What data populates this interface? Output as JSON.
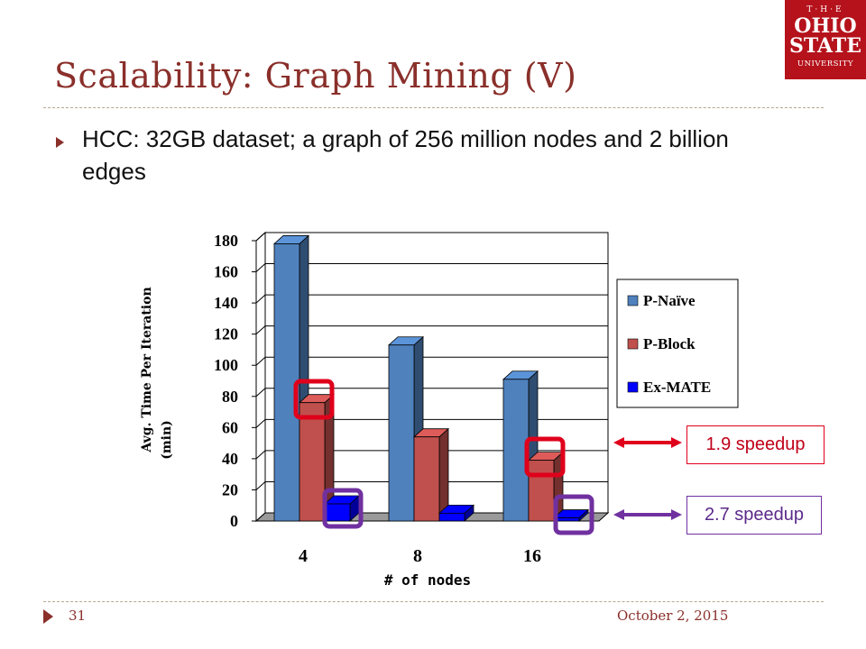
{
  "slide": {
    "title": "Scalability: Graph Mining (V)",
    "bullet": "HCC: 32GB dataset; a graph of 256 million nodes and 2 billion edges",
    "page_number": "31",
    "date": "October 2, 2015"
  },
  "logo": {
    "line1": "T·H·E",
    "line2": "OHIO",
    "line3": "STATE",
    "line4": "UNIVERSITY"
  },
  "callouts": {
    "speedup_red": "1.9 speedup",
    "speedup_purple": "2.7 speedup"
  },
  "colors": {
    "title": "#8a2f2a",
    "red_highlight": "#e0001b",
    "purple_highlight": "#7030a0"
  },
  "chart_data": {
    "type": "bar",
    "categories": [
      "4",
      "8",
      "16"
    ],
    "series": [
      {
        "name": "P-Naïve",
        "values": [
          178,
          113,
          91
        ],
        "color": "#4f81bd"
      },
      {
        "name": "P-Block",
        "values": [
          76,
          54,
          39
        ],
        "color": "#c0504d"
      },
      {
        "name": "Ex-MATE",
        "values": [
          11,
          5,
          2
        ],
        "color": "#0000ff"
      }
    ],
    "title": "",
    "xlabel": "# of nodes",
    "ylabel": "Avg. Time Per Iteration (min)",
    "ylim": [
      0,
      180
    ],
    "yticks": [
      0,
      20,
      40,
      60,
      80,
      100,
      120,
      140,
      160,
      180
    ],
    "grid": true,
    "legend_position": "right",
    "style": "3d"
  }
}
